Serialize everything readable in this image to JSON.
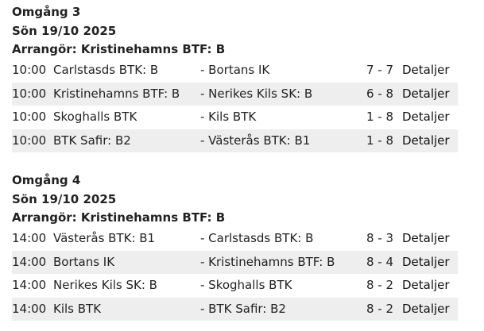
{
  "rounds": [
    {
      "title": "Omgång 3",
      "date": "Sön 19/10 2025",
      "organizer": "Arrangör: Kristinehamns BTF: B",
      "matches": [
        {
          "time": "10:00",
          "home": "Carlstasds BTK: B",
          "away": "- Bortans IK",
          "score": "7 - 7",
          "link": "Detaljer"
        },
        {
          "time": "10:00",
          "home": "Kristinehamns BTF: B",
          "away": "- Nerikes Kils SK: B",
          "score": "6 - 8",
          "link": "Detaljer"
        },
        {
          "time": "10:00",
          "home": "Skoghalls BTK",
          "away": "- Kils BTK",
          "score": "1 - 8",
          "link": "Detaljer"
        },
        {
          "time": "10:00",
          "home": "BTK Safir: B2",
          "away": "- Västerås BTK: B1",
          "score": "1 - 8",
          "link": "Detaljer"
        }
      ]
    },
    {
      "title": "Omgång 4",
      "date": "Sön 19/10 2025",
      "organizer": "Arrangör: Kristinehamns BTF: B",
      "matches": [
        {
          "time": "14:00",
          "home": "Västerås BTK: B1",
          "away": "- Carlstasds BTK: B",
          "score": "8 - 3",
          "link": "Detaljer"
        },
        {
          "time": "14:00",
          "home": "Bortans IK",
          "away": "- Kristinehamns BTF: B",
          "score": "8 - 4",
          "link": "Detaljer"
        },
        {
          "time": "14:00",
          "home": "Nerikes Kils SK: B",
          "away": "- Skoghalls BTK",
          "score": "8 - 2",
          "link": "Detaljer"
        },
        {
          "time": "14:00",
          "home": "Kils BTK",
          "away": "- BTK Safir: B2",
          "score": "8 - 2",
          "link": "Detaljer"
        }
      ]
    }
  ]
}
